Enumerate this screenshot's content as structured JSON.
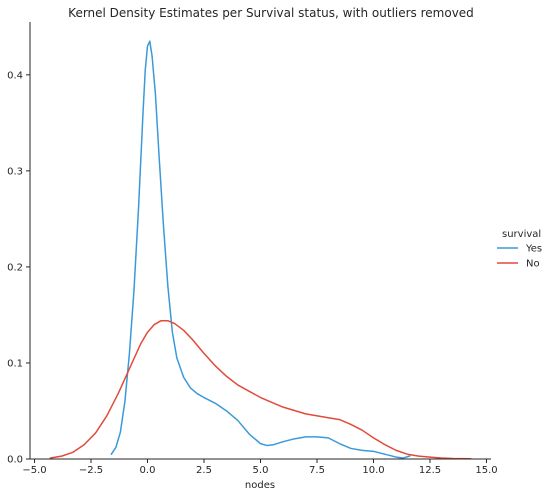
{
  "chart_data": {
    "type": "line",
    "title": "Kernel Density Estimates per Survival status, with outliers removed",
    "xlabel": "nodes",
    "ylabel": "",
    "xlim": [
      -5.2,
      15.2
    ],
    "ylim": [
      0,
      0.455
    ],
    "xticks": [
      -5.0,
      -2.5,
      0.0,
      2.5,
      5.0,
      7.5,
      10.0,
      12.5,
      15.0
    ],
    "xtick_labels": [
      "−5.0",
      "−2.5",
      "0.0",
      "2.5",
      "5.0",
      "7.5",
      "10.0",
      "12.5",
      "15.0"
    ],
    "yticks": [
      0.0,
      0.1,
      0.2,
      0.3,
      0.4
    ],
    "ytick_labels": [
      "0.0",
      "0.1",
      "0.2",
      "0.3",
      "0.4"
    ],
    "grid": false,
    "legend": {
      "title": "survival",
      "placement": "right"
    },
    "series": [
      {
        "name": "Yes",
        "color": "#3a9ad9",
        "x": [
          -1.6,
          -1.4,
          -1.2,
          -1.0,
          -0.8,
          -0.6,
          -0.4,
          -0.2,
          -0.1,
          0.0,
          0.1,
          0.2,
          0.35,
          0.5,
          0.7,
          0.9,
          1.1,
          1.3,
          1.6,
          1.9,
          2.2,
          2.5,
          3.0,
          3.5,
          4.0,
          4.5,
          5.0,
          5.3,
          5.6,
          6.0,
          6.5,
          7.0,
          7.5,
          8.0,
          8.5,
          9.0,
          9.5,
          10.0,
          10.5,
          11.0,
          11.3,
          11.6
        ],
        "y": [
          0.005,
          0.012,
          0.028,
          0.06,
          0.11,
          0.175,
          0.26,
          0.36,
          0.405,
          0.43,
          0.435,
          0.42,
          0.38,
          0.32,
          0.245,
          0.18,
          0.132,
          0.105,
          0.085,
          0.074,
          0.068,
          0.064,
          0.058,
          0.05,
          0.04,
          0.026,
          0.016,
          0.014,
          0.015,
          0.018,
          0.021,
          0.023,
          0.023,
          0.022,
          0.016,
          0.011,
          0.009,
          0.008,
          0.005,
          0.002,
          0.001,
          0.003
        ]
      },
      {
        "name": "No",
        "color": "#e14b3b",
        "x": [
          -4.3,
          -3.8,
          -3.3,
          -2.8,
          -2.3,
          -1.8,
          -1.3,
          -0.8,
          -0.3,
          0.0,
          0.3,
          0.6,
          0.9,
          1.2,
          1.6,
          2.0,
          2.5,
          3.0,
          3.5,
          4.0,
          5.0,
          6.0,
          7.0,
          8.0,
          8.5,
          9.0,
          9.5,
          10.0,
          10.5,
          11.0,
          11.5,
          12.0,
          12.5,
          13.0,
          13.5,
          14.3
        ],
        "y": [
          0.001,
          0.003,
          0.007,
          0.015,
          0.027,
          0.045,
          0.068,
          0.094,
          0.12,
          0.132,
          0.14,
          0.144,
          0.144,
          0.141,
          0.134,
          0.124,
          0.11,
          0.097,
          0.086,
          0.077,
          0.064,
          0.054,
          0.047,
          0.043,
          0.041,
          0.036,
          0.03,
          0.022,
          0.015,
          0.009,
          0.005,
          0.003,
          0.002,
          0.001,
          0.0005,
          0.0002
        ]
      }
    ]
  }
}
